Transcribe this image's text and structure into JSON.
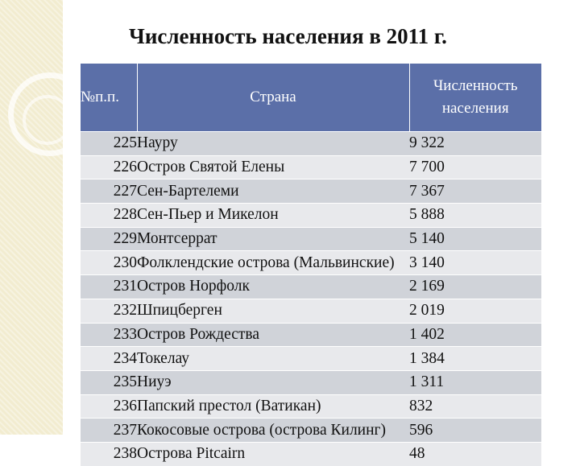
{
  "title": "Численность населения в 2011 г.",
  "table": {
    "headers": {
      "number": "№п.п.",
      "country": "Страна",
      "population_line1": "Численность",
      "population_line2": "населения"
    },
    "rows": [
      {
        "num": "225",
        "country": "Науру",
        "population": "9 322"
      },
      {
        "num": "226",
        "country": "Остров Святой Елены",
        "population": "7 700"
      },
      {
        "num": "227",
        "country": "Сен-Бартелеми",
        "population": "7 367"
      },
      {
        "num": "228",
        "country": "Сен-Пьер и Микелон",
        "population": "5 888"
      },
      {
        "num": "229",
        "country": "Монтсеррат",
        "population": "5 140"
      },
      {
        "num": "230",
        "country": "Фолклендские острова (Мальвинские)",
        "population": "3 140"
      },
      {
        "num": "231",
        "country": "Остров Норфолк",
        "population": "2 169"
      },
      {
        "num": "232",
        "country": "Шпицберген",
        "population": "2 019"
      },
      {
        "num": "233",
        "country": "Остров Рождества",
        "population": "1 402"
      },
      {
        "num": "234",
        "country": "Токелау",
        "population": "1 384"
      },
      {
        "num": "235",
        "country": "Ниуэ",
        "population": "1 311"
      },
      {
        "num": "236",
        "country": "Папский престол (Ватикан)",
        "population": "832"
      },
      {
        "num": "237",
        "country": "Кокосовые острова (острова Килинг)",
        "population": "596"
      },
      {
        "num": "238",
        "country": "Острова Pitcairn",
        "population": "48"
      }
    ]
  },
  "colors": {
    "header_bg": "#5b6fa8",
    "row_dark": "#d0d3d9",
    "row_light": "#e8e9ec",
    "side_panel": "#f2ecd0"
  }
}
